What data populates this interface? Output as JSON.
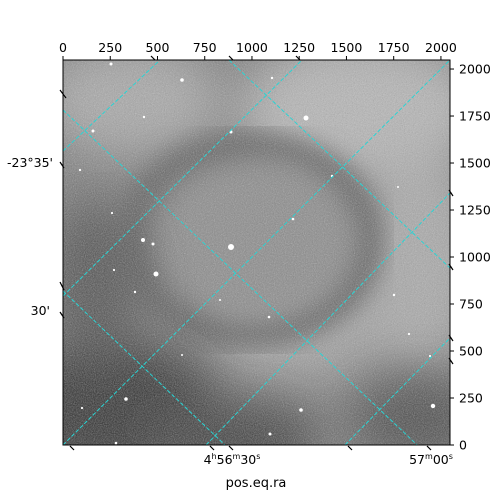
{
  "chart_data": {
    "type": "image",
    "xlabel": "pos.eq.ra",
    "ylabel": "",
    "pixel_axis": {
      "x_ticks": [
        0,
        250,
        500,
        750,
        1000,
        1250,
        1500,
        1750,
        2000
      ],
      "y_ticks": [
        0,
        250,
        500,
        750,
        1000,
        1250,
        1500,
        1750,
        2000
      ],
      "xlim": [
        0,
        2048
      ],
      "ylim": [
        0,
        2048
      ]
    },
    "world_ticks": {
      "ra": [
        "4h56m30s",
        "57m00s"
      ],
      "dec": [
        "-23°35'",
        "30'"
      ]
    },
    "grid": true,
    "grid_color": "#2ad4d4",
    "colormap": "gray"
  }
}
